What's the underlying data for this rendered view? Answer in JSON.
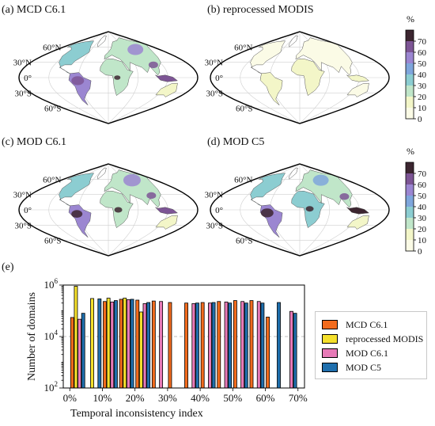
{
  "maps": [
    {
      "label": "(a) MCD C6.1",
      "variant": "mcd"
    },
    {
      "label": "(b) reprocessed MODIS",
      "variant": "rep"
    },
    {
      "label": "(c) MOD C6.1",
      "variant": "mod61"
    },
    {
      "label": "(d) MOD C5",
      "variant": "mod5"
    }
  ],
  "latitude_labels": [
    "60°N",
    "30°N",
    "0°",
    "30°S",
    "60°S"
  ],
  "colorbar": {
    "unit": "%",
    "ticks": [
      "0",
      "10",
      "20",
      "30",
      "40",
      "50",
      "60",
      "70"
    ],
    "colors": [
      "#fbfbe6",
      "#f3f6c8",
      "#c0e6c9",
      "#8ccdd1",
      "#7fa6dc",
      "#9b86d1",
      "#7d5595",
      "#3c2530"
    ]
  },
  "chart_data": {
    "type": "bar",
    "panel_label": "(e)",
    "xlabel": "Temporal inconsistency index",
    "ylabel": "Number of domains",
    "yscale": "log",
    "ylim": [
      100,
      1000000
    ],
    "y_ticks": [
      {
        "value": 100,
        "label": "10",
        "exp": "2"
      },
      {
        "value": 10000,
        "label": "10",
        "exp": "4"
      },
      {
        "value": 1000000,
        "label": "10",
        "exp": "6"
      }
    ],
    "x_ticks": [
      "0%",
      "10%",
      "20%",
      "30%",
      "40%",
      "50%",
      "60%",
      "70%"
    ],
    "x_range": [
      -0.02,
      0.72
    ],
    "grid": "horizontal dashed at major ticks",
    "legend_position": "right",
    "bin_width": 0.05,
    "bin_starts": [
      0.0,
      0.05,
      0.1,
      0.15,
      0.2,
      0.25,
      0.3,
      0.35,
      0.4,
      0.45,
      0.5,
      0.55,
      0.6,
      0.65
    ],
    "series": [
      {
        "name": "MCD C6.1",
        "color": "#f26b1d",
        "values": [
          55000,
          null,
          230000,
          280000,
          260000,
          240000,
          210000,
          200000,
          210000,
          230000,
          250000,
          250000,
          57000,
          null
        ]
      },
      {
        "name": "reprocessed MODIS",
        "color": "#f5e02c",
        "values": [
          900000,
          300000,
          310000,
          310000,
          90000,
          null,
          null,
          null,
          null,
          null,
          null,
          null,
          null,
          null
        ]
      },
      {
        "name": "MOD C6.1",
        "color": "#e77ab7",
        "values": [
          47000,
          null,
          220000,
          270000,
          190000,
          230000,
          null,
          190000,
          200000,
          220000,
          230000,
          230000,
          null,
          95000
        ]
      },
      {
        "name": "MOD C5",
        "color": "#1f6fad",
        "values": [
          80000,
          290000,
          250000,
          280000,
          210000,
          null,
          null,
          200000,
          210000,
          200000,
          200000,
          200000,
          210000,
          80000
        ]
      }
    ]
  }
}
